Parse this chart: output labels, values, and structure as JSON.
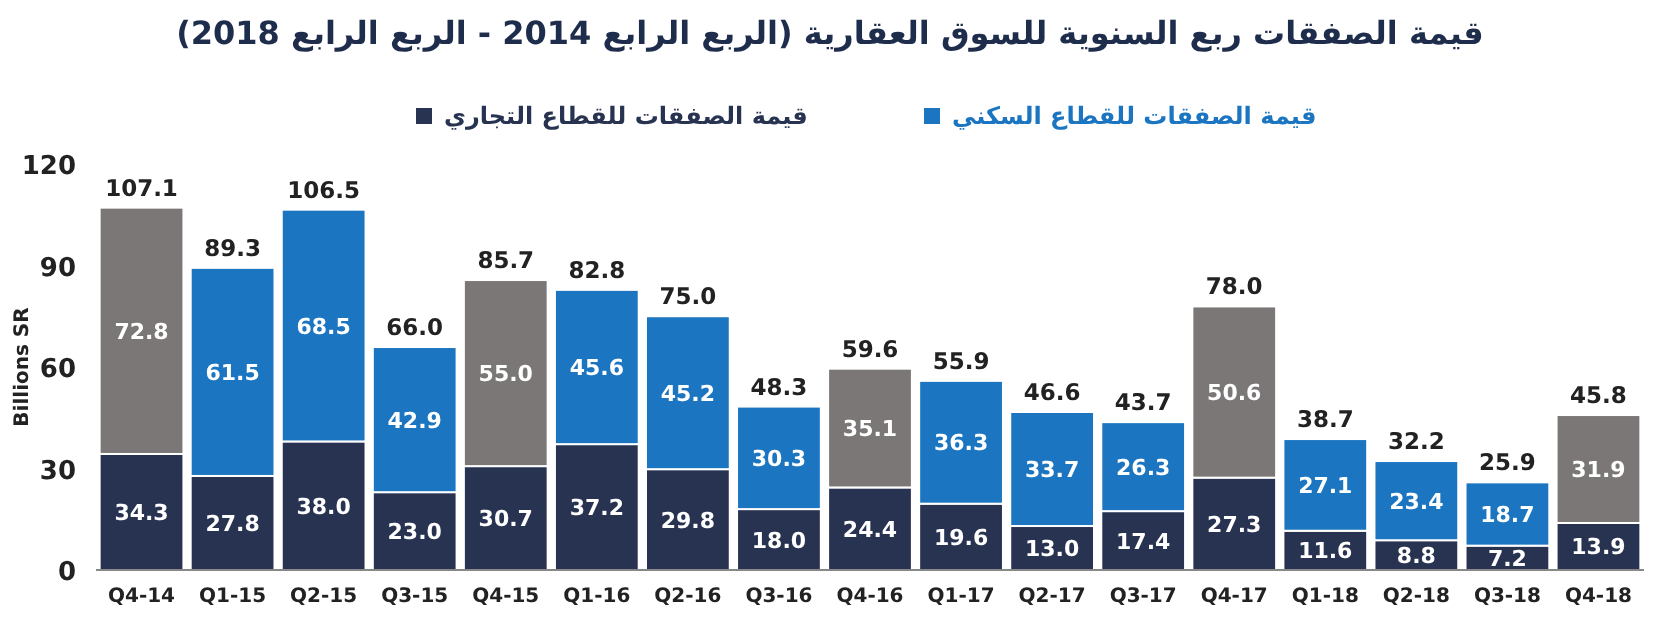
{
  "chart_data": {
    "type": "bar",
    "stacked": true,
    "title": "قيمة الصفقات ربع السنوية للسوق العقارية (الربع الرابع 2014 - الربع الرابع 2018)",
    "ylabel": "Billions SR",
    "categories": [
      "Q4-14",
      "Q1-15",
      "Q2-15",
      "Q3-15",
      "Q4-15",
      "Q1-16",
      "Q2-16",
      "Q3-16",
      "Q4-16",
      "Q1-17",
      "Q2-17",
      "Q3-17",
      "Q4-17",
      "Q1-18",
      "Q2-18",
      "Q3-18",
      "Q4-18"
    ],
    "series": [
      {
        "name": "قيمة الصفقات للقطاع التجاري",
        "color": "#283352",
        "values": [
          34.3,
          27.8,
          38.0,
          23.0,
          30.7,
          37.2,
          29.8,
          18.0,
          24.4,
          19.6,
          13.0,
          17.4,
          27.3,
          11.6,
          8.8,
          7.2,
          13.9
        ],
        "value_labels": [
          "34.3",
          "27.8",
          "38.0",
          "23.0",
          "30.7",
          "37.2",
          "29.8",
          "18.0",
          "24.4",
          "19.6",
          "13.0",
          "17.4",
          "27.3",
          "11.6",
          "8.8",
          "7.2",
          "13.9"
        ]
      },
      {
        "name": "قيمة الصفقات للقطاع السكني",
        "color": "#1b75c0",
        "colors": [
          "#7b7777",
          "#1b75c0",
          "#1b75c0",
          "#1b75c0",
          "#7b7777",
          "#1b75c0",
          "#1b75c0",
          "#1b75c0",
          "#7b7777",
          "#1b75c0",
          "#1b75c0",
          "#1b75c0",
          "#7b7777",
          "#1b75c0",
          "#1b75c0",
          "#1b75c0",
          "#7b7777"
        ],
        "values": [
          72.8,
          61.5,
          68.5,
          42.9,
          55.0,
          45.6,
          45.2,
          30.3,
          35.1,
          36.3,
          33.7,
          26.3,
          50.6,
          27.1,
          23.4,
          18.7,
          31.9
        ],
        "value_labels": [
          "72.8",
          "61.5",
          "68.5",
          "42.9",
          "55.0",
          "45.6",
          "45.2",
          "30.3",
          "35.1",
          "36.3",
          "33.7",
          "26.3",
          "50.6",
          "27.1",
          "23.4",
          "18.7",
          "31.9"
        ]
      }
    ],
    "totals": [
      "107.1",
      "89.3",
      "106.5",
      "66.0",
      "85.7",
      "82.8",
      "75.0",
      "48.3",
      "59.6",
      "55.9",
      "46.6",
      "43.7",
      "78.0",
      "38.7",
      "32.2",
      "25.9",
      "45.8"
    ],
    "ylim": [
      0,
      120
    ],
    "yticks": [
      0,
      30,
      60,
      90,
      120
    ],
    "legend": "top",
    "grid": false
  }
}
